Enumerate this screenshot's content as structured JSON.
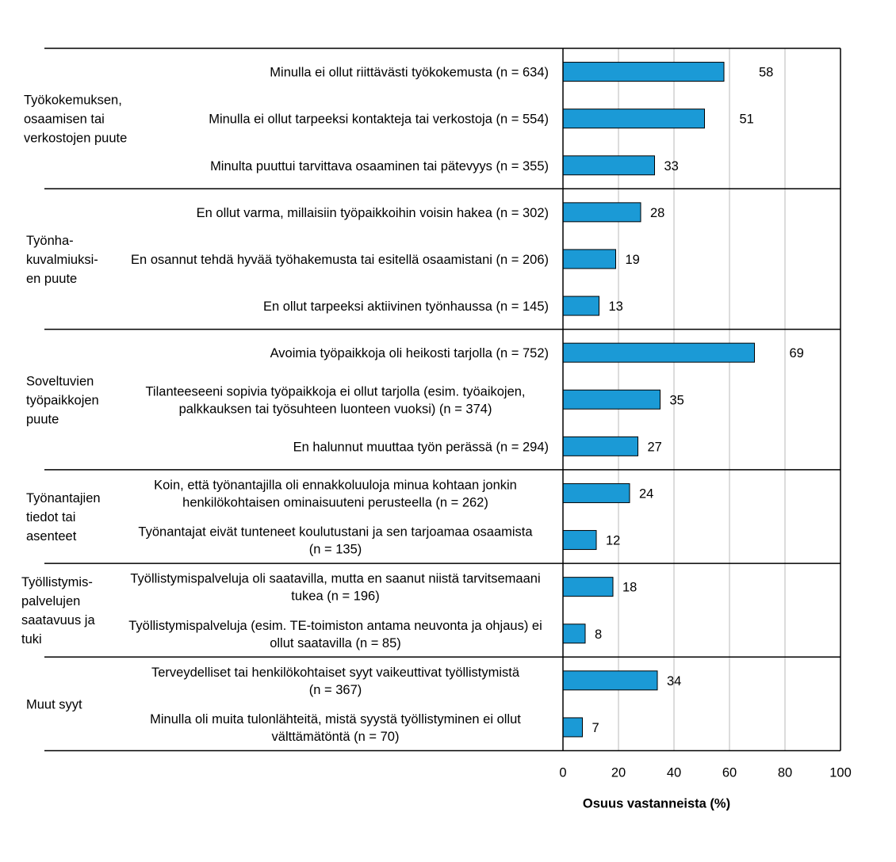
{
  "chart_data": {
    "type": "bar",
    "orientation": "horizontal",
    "xlabel": "Osuus vastanneista (%)",
    "xlim": [
      0,
      100
    ],
    "xticks": [
      "0",
      "20",
      "40",
      "60",
      "80",
      "100"
    ],
    "grid": "vertical",
    "bar_color": "#1b9ad6",
    "groups": [
      {
        "label": [
          "Työkokemuksen,",
          "osaamisen tai",
          "verkostojen puute"
        ],
        "items": [
          {
            "label": [
              "Minulla ei ollut riittävästi työkokemusta (n = 634)"
            ],
            "value": 58,
            "value_label": "58"
          },
          {
            "label": [
              "Minulla ei ollut tarpeeksi kontakteja tai verkostoja (n = 554)"
            ],
            "value": 51,
            "value_label": "51"
          },
          {
            "label": [
              "Minulta puuttui tarvittava osaaminen tai pätevyys (n = 355)"
            ],
            "value": 33,
            "value_label": "33"
          }
        ]
      },
      {
        "label": [
          "Työnha-",
          "kuvalmiuksi-",
          "en puute"
        ],
        "items": [
          {
            "label": [
              "En ollut varma, millaisiin työpaikkoihin voisin hakea (n = 302)"
            ],
            "value": 28,
            "value_label": "28"
          },
          {
            "label": [
              "En osannut tehdä hyvää työhakemusta tai esitellä osaamistani (n = 206)"
            ],
            "value": 19,
            "value_label": "19"
          },
          {
            "label": [
              "En ollut tarpeeksi aktiivinen työnhaussa (n = 145)"
            ],
            "value": 13,
            "value_label": "13"
          }
        ]
      },
      {
        "label": [
          "Soveltuvien",
          "työpaikkojen",
          "puute"
        ],
        "items": [
          {
            "label": [
              "Avoimia työpaikkoja oli heikosti tarjolla (n = 752)"
            ],
            "value": 69,
            "value_label": "69"
          },
          {
            "label": [
              "Tilanteeseeni sopivia työpaikkoja ei ollut tarjolla (esim. työaikojen,",
              "palkkauksen tai työsuhteen luonteen vuoksi) (n = 374)"
            ],
            "value": 35,
            "value_label": "35"
          },
          {
            "label": [
              "En halunnut muuttaa työn perässä (n = 294)"
            ],
            "value": 27,
            "value_label": "27"
          }
        ]
      },
      {
        "label": [
          "Työnantajien",
          "tiedot tai",
          "asenteet"
        ],
        "items": [
          {
            "label": [
              "Koin, että työnantajilla oli ennakkoluuloja minua kohtaan jonkin",
              "henkilökohtaisen ominaisuuteni perusteella (n = 262)"
            ],
            "value": 24,
            "value_label": "24"
          },
          {
            "label": [
              "Työnantajat eivät tunteneet koulutustani ja sen tarjoamaa osaamista",
              "(n = 135)"
            ],
            "value": 12,
            "value_label": "12"
          }
        ]
      },
      {
        "label": [
          "Työllistymis-",
          "palvelujen",
          "saatavuus ja",
          "tuki"
        ],
        "items": [
          {
            "label": [
              "Työllistymispalveluja oli saatavilla, mutta en saanut niistä tarvitsemaani",
              "tukea (n = 196)"
            ],
            "value": 18,
            "value_label": "18"
          },
          {
            "label": [
              "Työllistymispalveluja (esim. TE-toimiston antama neuvonta ja ohjaus) ei",
              "ollut saatavilla (n = 85)"
            ],
            "value": 8,
            "value_label": "8"
          }
        ]
      },
      {
        "label": [
          "Muut syyt"
        ],
        "items": [
          {
            "label": [
              "Terveydelliset tai henkilökohtaiset syyt vaikeuttivat työllistymistä",
              "(n = 367)"
            ],
            "value": 34,
            "value_label": "34"
          },
          {
            "label": [
              "Minulla oli muita tulonlähteitä, mistä syystä työllistyminen ei ollut",
              "välttämätöntä (n = 70)"
            ],
            "value": 7,
            "value_label": "7"
          }
        ]
      }
    ]
  }
}
